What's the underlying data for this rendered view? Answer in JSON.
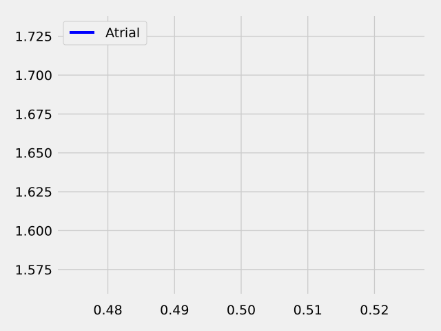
{
  "colors": {
    "background": "#f0f0f0",
    "grid": "#cbcbcb",
    "series_atrial": "#0000ff",
    "legend_border": "#cccccc"
  },
  "chart_data": {
    "type": "line",
    "title": "",
    "xlabel": "",
    "ylabel": "",
    "grid": true,
    "legend_placement": "top-left",
    "xlim": [
      0.4725,
      0.5275
    ],
    "ylim": [
      1.5594,
      1.7381
    ],
    "x_ticks": [
      "0.48",
      "0.49",
      "0.50",
      "0.51",
      "0.52"
    ],
    "y_ticks": [
      "1.575",
      "1.600",
      "1.625",
      "1.650",
      "1.675",
      "1.700",
      "1.725"
    ],
    "series": [
      {
        "name": "Atrial",
        "color": "#0000ff",
        "x": [],
        "y": []
      }
    ]
  }
}
